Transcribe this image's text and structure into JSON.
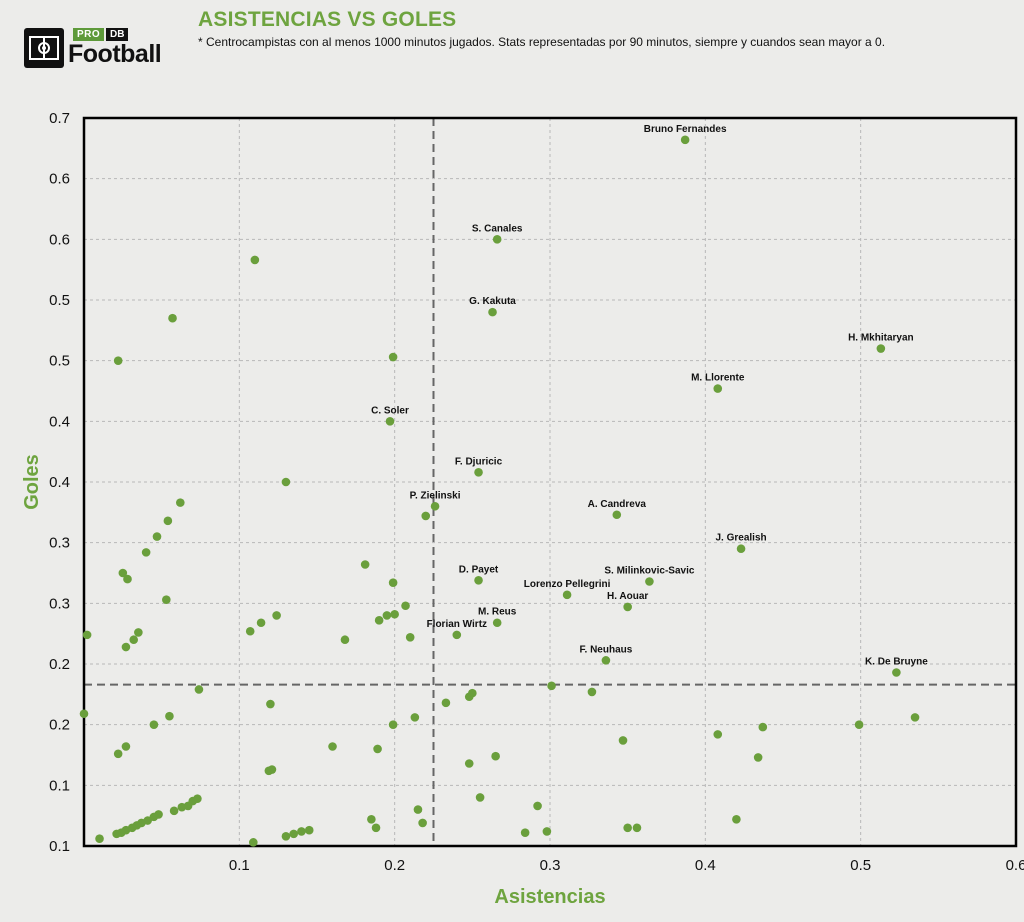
{
  "header": {
    "logo_pro": "PRO",
    "logo_db": "DB",
    "logo_name": "Football",
    "title": "ASISTENCIAS VS GOLES",
    "subtitle": "* Centrocampistas con al menos 1000 minutos jugados. Stats representadas por 90 minutos, siempre y cuandos sean mayor a 0."
  },
  "colors": {
    "accent": "#6ea43f",
    "point": "#6a9f3c",
    "frame": "#000000",
    "grid": "#b8b8b8",
    "reference": "#666666"
  },
  "chart_data": {
    "type": "scatter",
    "title": "ASISTENCIAS VS GOLES",
    "xlabel": "Asistencias",
    "ylabel": "Goles",
    "xlim": [
      0.0,
      0.6
    ],
    "ylim": [
      0.1,
      0.7
    ],
    "grid": true,
    "x_ticks": [
      {
        "value": 0.1,
        "label": "0.1"
      },
      {
        "value": 0.2,
        "label": "0.2"
      },
      {
        "value": 0.3,
        "label": "0.3"
      },
      {
        "value": 0.4,
        "label": "0.4"
      },
      {
        "value": 0.5,
        "label": "0.5"
      },
      {
        "value": 0.6,
        "label": "0.6"
      }
    ],
    "y_ticks": [
      {
        "value": 0.1,
        "label": "0.1"
      },
      {
        "value": 0.15,
        "label": "0.1"
      },
      {
        "value": 0.2,
        "label": "0.2"
      },
      {
        "value": 0.25,
        "label": "0.2"
      },
      {
        "value": 0.3,
        "label": "0.3"
      },
      {
        "value": 0.35,
        "label": "0.3"
      },
      {
        "value": 0.4,
        "label": "0.4"
      },
      {
        "value": 0.45,
        "label": "0.4"
      },
      {
        "value": 0.5,
        "label": "0.5"
      },
      {
        "value": 0.55,
        "label": "0.5"
      },
      {
        "value": 0.6,
        "label": "0.6"
      },
      {
        "value": 0.65,
        "label": "0.6"
      },
      {
        "value": 0.7,
        "label": "0.7"
      }
    ],
    "reference_lines": {
      "x": 0.225,
      "y": 0.233
    },
    "labeled_points": [
      {
        "name": "Bruno Fernandes",
        "x": 0.387,
        "y": 0.682
      },
      {
        "name": "S. Canales",
        "x": 0.266,
        "y": 0.6
      },
      {
        "name": "G. Kakuta",
        "x": 0.263,
        "y": 0.54
      },
      {
        "name": "H. Mkhitaryan",
        "x": 0.513,
        "y": 0.51
      },
      {
        "name": "M. Llorente",
        "x": 0.408,
        "y": 0.477
      },
      {
        "name": "C. Soler",
        "x": 0.197,
        "y": 0.45
      },
      {
        "name": "F. Djuricic",
        "x": 0.254,
        "y": 0.408
      },
      {
        "name": "P. Zielinski",
        "x": 0.226,
        "y": 0.38
      },
      {
        "name": "A. Candreva",
        "x": 0.343,
        "y": 0.373
      },
      {
        "name": "J. Grealish",
        "x": 0.423,
        "y": 0.345
      },
      {
        "name": "D. Payet",
        "x": 0.254,
        "y": 0.319
      },
      {
        "name": "S. Milinkovic-Savic",
        "x": 0.364,
        "y": 0.318
      },
      {
        "name": "Lorenzo Pellegrini",
        "x": 0.311,
        "y": 0.307
      },
      {
        "name": "H. Aouar",
        "x": 0.35,
        "y": 0.297
      },
      {
        "name": "M. Reus",
        "x": 0.266,
        "y": 0.284
      },
      {
        "name": "Florian Wirtz",
        "x": 0.24,
        "y": 0.274
      },
      {
        "name": "F. Neuhaus",
        "x": 0.336,
        "y": 0.253
      },
      {
        "name": "K. De Bruyne",
        "x": 0.523,
        "y": 0.243
      }
    ],
    "points": [
      [
        0.11,
        0.583
      ],
      [
        0.057,
        0.535
      ],
      [
        0.022,
        0.5
      ],
      [
        0.199,
        0.503
      ],
      [
        0.13,
        0.4
      ],
      [
        0.062,
        0.383
      ],
      [
        0.054,
        0.368
      ],
      [
        0.047,
        0.355
      ],
      [
        0.04,
        0.342
      ],
      [
        0.025,
        0.325
      ],
      [
        0.028,
        0.32
      ],
      [
        0.053,
        0.303
      ],
      [
        0.22,
        0.372
      ],
      [
        0.181,
        0.332
      ],
      [
        0.199,
        0.317
      ],
      [
        0.207,
        0.298
      ],
      [
        0.2,
        0.291
      ],
      [
        0.195,
        0.29
      ],
      [
        0.19,
        0.286
      ],
      [
        0.124,
        0.29
      ],
      [
        0.114,
        0.284
      ],
      [
        0.107,
        0.277
      ],
      [
        0.168,
        0.27
      ],
      [
        0.21,
        0.272
      ],
      [
        0.035,
        0.276
      ],
      [
        0.032,
        0.27
      ],
      [
        0.027,
        0.264
      ],
      [
        0.002,
        0.274
      ],
      [
        0.074,
        0.229
      ],
      [
        0.12,
        0.217
      ],
      [
        0.0,
        0.209
      ],
      [
        0.055,
        0.207
      ],
      [
        0.045,
        0.2
      ],
      [
        0.199,
        0.2
      ],
      [
        0.213,
        0.206
      ],
      [
        0.233,
        0.218
      ],
      [
        0.25,
        0.226
      ],
      [
        0.248,
        0.223
      ],
      [
        0.327,
        0.227
      ],
      [
        0.301,
        0.232
      ],
      [
        0.499,
        0.2
      ],
      [
        0.535,
        0.206
      ],
      [
        0.027,
        0.182
      ],
      [
        0.022,
        0.176
      ],
      [
        0.16,
        0.182
      ],
      [
        0.347,
        0.187
      ],
      [
        0.408,
        0.192
      ],
      [
        0.437,
        0.198
      ],
      [
        0.434,
        0.173
      ],
      [
        0.265,
        0.174
      ],
      [
        0.248,
        0.168
      ],
      [
        0.119,
        0.162
      ],
      [
        0.121,
        0.163
      ],
      [
        0.189,
        0.18
      ],
      [
        0.073,
        0.139
      ],
      [
        0.07,
        0.137
      ],
      [
        0.067,
        0.133
      ],
      [
        0.063,
        0.132
      ],
      [
        0.058,
        0.129
      ],
      [
        0.048,
        0.126
      ],
      [
        0.045,
        0.124
      ],
      [
        0.041,
        0.121
      ],
      [
        0.037,
        0.119
      ],
      [
        0.034,
        0.117
      ],
      [
        0.031,
        0.115
      ],
      [
        0.027,
        0.113
      ],
      [
        0.024,
        0.111
      ],
      [
        0.021,
        0.11
      ],
      [
        0.01,
        0.106
      ],
      [
        0.255,
        0.14
      ],
      [
        0.215,
        0.13
      ],
      [
        0.185,
        0.122
      ],
      [
        0.188,
        0.115
      ],
      [
        0.218,
        0.119
      ],
      [
        0.145,
        0.113
      ],
      [
        0.14,
        0.112
      ],
      [
        0.135,
        0.11
      ],
      [
        0.13,
        0.108
      ],
      [
        0.109,
        0.103
      ],
      [
        0.292,
        0.133
      ],
      [
        0.284,
        0.111
      ],
      [
        0.298,
        0.112
      ],
      [
        0.42,
        0.122
      ],
      [
        0.35,
        0.115
      ],
      [
        0.356,
        0.115
      ]
    ]
  }
}
